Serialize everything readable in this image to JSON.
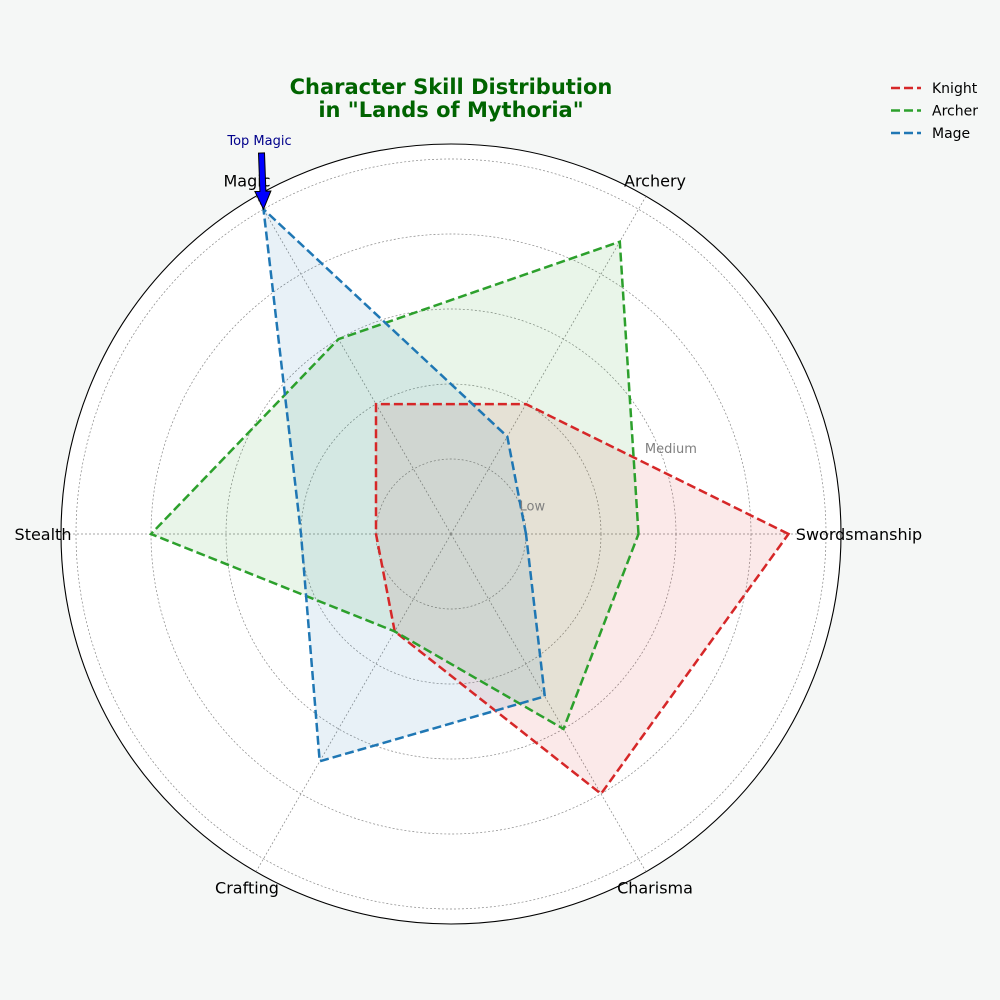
{
  "chart_data": {
    "type": "radar",
    "title": "Character Skill Distribution\nin \"Lands of Mythoria\"",
    "categories": [
      "Swordsmanship",
      "Archery",
      "Magic",
      "Stealth",
      "Crafting",
      "Charisma"
    ],
    "rmax": 10,
    "grid_levels": [
      2,
      4,
      6,
      8,
      10
    ],
    "ring_labels": [
      {
        "level": 2,
        "label": "Low"
      },
      {
        "level": 6,
        "label": "Medium"
      }
    ],
    "grid": true,
    "legend_position": "top-right",
    "series": [
      {
        "name": "Knight",
        "values": [
          9,
          4,
          4,
          2,
          3,
          8
        ],
        "color": "#d62728"
      },
      {
        "name": "Archer",
        "values": [
          5,
          9,
          6,
          8,
          3,
          6
        ],
        "color": "#2ca02c"
      },
      {
        "name": "Mage",
        "values": [
          2,
          3,
          10,
          4,
          7,
          5
        ],
        "color": "#1f77b4"
      }
    ],
    "annotation": {
      "text": "Top Magic",
      "series": "Mage",
      "category": "Magic",
      "color": "#00008b",
      "arrow_color": "#0000ff"
    }
  }
}
